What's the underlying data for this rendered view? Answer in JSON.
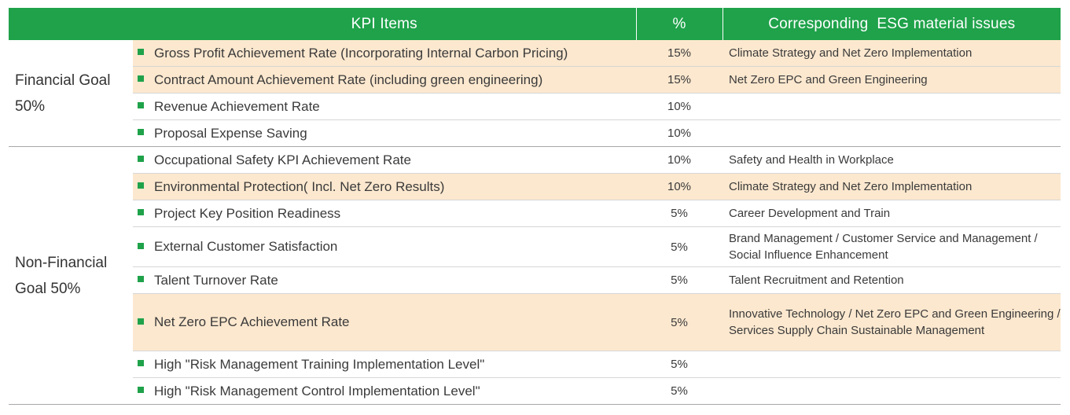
{
  "headers": {
    "kpi": "KPI Items",
    "pct": "%",
    "esg": "Corresponding  ESG material issues"
  },
  "groups": {
    "financial": "Financial Goal 50%",
    "non_financial": "Non-Financial Goal 50%"
  },
  "rows": [
    {
      "kpi": "Gross Profit Achievement Rate (Incorporating Internal Carbon Pricing)",
      "pct": "15%",
      "esg": "Climate Strategy and Net Zero Implementation"
    },
    {
      "kpi": "Contract Amount Achievement Rate (including green engineering)",
      "pct": "15%",
      "esg": "Net Zero EPC and Green Engineering"
    },
    {
      "kpi": "Revenue Achievement Rate",
      "pct": "10%",
      "esg": ""
    },
    {
      "kpi": "Proposal Expense Saving",
      "pct": "10%",
      "esg": ""
    },
    {
      "kpi": "Occupational Safety KPI Achievement Rate",
      "pct": "10%",
      "esg": "Safety and Health in Workplace"
    },
    {
      "kpi": "Environmental Protection( Incl. Net Zero Results)",
      "pct": "10%",
      "esg": "Climate Strategy and Net Zero Implementation"
    },
    {
      "kpi": "Project Key Position Readiness",
      "pct": "5%",
      "esg": "Career Development and Train"
    },
    {
      "kpi": "External Customer Satisfaction",
      "pct": "5%",
      "esg": "Brand Management / Customer Service and Management / Social Influence Enhancement"
    },
    {
      "kpi": "Talent Turnover Rate",
      "pct": "5%",
      "esg": "Talent Recruitment and Retention"
    },
    {
      "kpi": "Net Zero EPC Achievement Rate",
      "pct": "5%",
      "esg": "Innovative Technology / Net Zero EPC and Green Engineering / Services Supply Chain Sustainable Management"
    },
    {
      "kpi": "High \"Risk Management Training Implementation Level\"",
      "pct": "5%",
      "esg": ""
    },
    {
      "kpi": "High \"Risk Management Control Implementation Level\"",
      "pct": "5%",
      "esg": ""
    }
  ],
  "colors": {
    "header_bg": "#1fa24a",
    "highlight_bg": "#fce8cf",
    "bullet": "#1fa24a"
  },
  "icons": {
    "bullet": "square-bullet-icon"
  }
}
